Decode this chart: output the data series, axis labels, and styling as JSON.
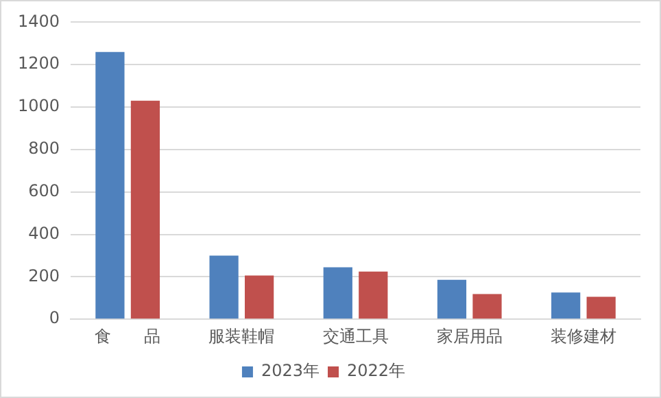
{
  "chart_data": {
    "type": "bar",
    "categories": [
      "食　　品",
      "服装鞋帽",
      "交通工具",
      "家居用品",
      "装修建材"
    ],
    "series": [
      {
        "name": "2023年",
        "color": "#4f81bd",
        "values": [
          1260,
          300,
          245,
          186,
          126
        ]
      },
      {
        "name": "2022年",
        "color": "#c0504d",
        "values": [
          1030,
          206,
          225,
          119,
          106
        ]
      }
    ],
    "ylim": [
      0,
      1400
    ],
    "yticks": [
      0,
      200,
      400,
      600,
      800,
      1000,
      1200,
      1400
    ],
    "grid": "y",
    "legend": "bottom"
  }
}
